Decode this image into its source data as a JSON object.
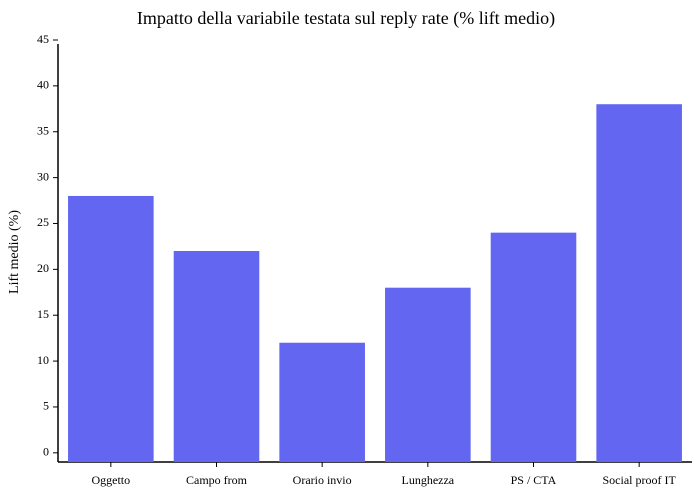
{
  "chart_data": {
    "type": "bar",
    "title": "Impatto della variabile testata sul reply rate (% lift medio)",
    "y_label": "Lift medio (%)",
    "categories": [
      "Oggetto",
      "Campo from",
      "Orario invio",
      "Lunghezza",
      "PS / CTA",
      "Social proof IT"
    ],
    "values": [
      28,
      22,
      12,
      18,
      24,
      38
    ],
    "color": "#6366f1",
    "ylim": [
      -1,
      45
    ],
    "yticks": [
      0,
      5,
      10,
      15,
      20,
      25,
      30,
      35,
      40,
      45
    ],
    "grid": false
  }
}
